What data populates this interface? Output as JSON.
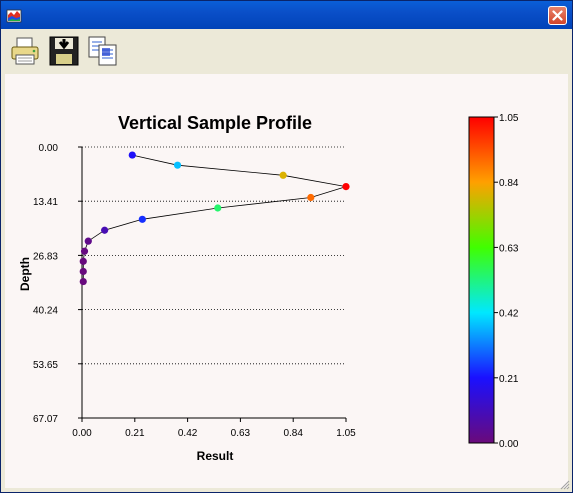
{
  "window": {
    "title": "",
    "icon": "chart-app-icon",
    "close_icon": "close-icon"
  },
  "toolbar": {
    "buttons": [
      "print-icon",
      "save-icon",
      "copy-icon"
    ]
  },
  "chart_data": {
    "type": "scatter",
    "title": "Vertical Sample Profile",
    "xlabel": "Result",
    "ylabel": "Depth",
    "x_ticks": [
      "0.00",
      "0.21",
      "0.42",
      "0.63",
      "0.84",
      "1.05"
    ],
    "y_ticks": [
      "0.00",
      "13.41",
      "26.83",
      "40.24",
      "53.65",
      "67.07"
    ],
    "xlim": [
      0,
      1.05
    ],
    "ylim": [
      0,
      67.07
    ],
    "y_inverted": true,
    "grid": "horizontal dotted",
    "connected_line": true,
    "points": [
      {
        "x": 0.2,
        "y": 2.0
      },
      {
        "x": 0.38,
        "y": 4.5
      },
      {
        "x": 0.8,
        "y": 7.0
      },
      {
        "x": 1.05,
        "y": 9.8
      },
      {
        "x": 0.91,
        "y": 12.5
      },
      {
        "x": 0.54,
        "y": 15.1
      },
      {
        "x": 0.24,
        "y": 17.9
      },
      {
        "x": 0.09,
        "y": 20.6
      },
      {
        "x": 0.025,
        "y": 23.3
      },
      {
        "x": 0.01,
        "y": 25.8
      },
      {
        "x": 0.005,
        "y": 28.3
      },
      {
        "x": 0.005,
        "y": 30.8
      },
      {
        "x": 0.005,
        "y": 33.3
      }
    ],
    "colorbar": {
      "ticks": [
        "0.00",
        "0.21",
        "0.42",
        "0.63",
        "0.84",
        "1.05"
      ],
      "range": [
        0,
        1.05
      ],
      "colors": [
        "#6a0a7a",
        "#1a10ff",
        "#00e8ff",
        "#40ff00",
        "#ffa000",
        "#ff0000"
      ]
    }
  }
}
